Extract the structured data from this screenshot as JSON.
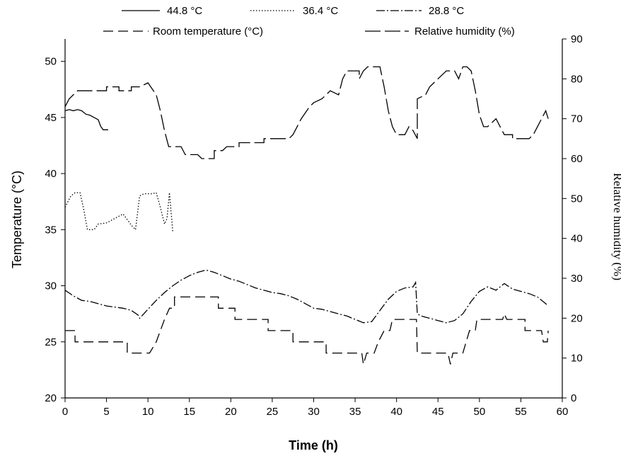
{
  "chart_data": {
    "type": "line",
    "xlabel": "Time (h)",
    "ylabel": "Temperature (°C)",
    "ylabel_right": "Relative humidity (%)",
    "xlim": [
      0,
      60
    ],
    "ylim": [
      20,
      52
    ],
    "ylim_right": [
      0,
      90
    ],
    "x_ticks": [
      0,
      5,
      10,
      15,
      20,
      25,
      30,
      35,
      40,
      45,
      50,
      55,
      60
    ],
    "y_ticks": [
      20,
      25,
      30,
      35,
      40,
      45,
      50
    ],
    "y_ticks_right": [
      0,
      10,
      20,
      30,
      40,
      50,
      60,
      70,
      80,
      90
    ],
    "grid": false,
    "legend_position": "top",
    "series": [
      {
        "name": "44.8 °C",
        "axis": "left",
        "style": "solid",
        "points": [
          [
            0,
            45.6
          ],
          [
            0.5,
            45.7
          ],
          [
            1,
            45.6
          ],
          [
            1.5,
            45.7
          ],
          [
            2,
            45.6
          ],
          [
            2.5,
            45.3
          ],
          [
            3,
            45.2
          ],
          [
            3.5,
            45.0
          ],
          [
            4,
            44.8
          ],
          [
            4.3,
            44.2
          ],
          [
            4.6,
            43.9
          ],
          [
            5.2,
            43.9
          ]
        ]
      },
      {
        "name": "36.4 °C",
        "axis": "left",
        "style": "dotted",
        "points": [
          [
            0,
            37.0
          ],
          [
            0.7,
            38.0
          ],
          [
            1.2,
            38.3
          ],
          [
            1.8,
            38.3
          ],
          [
            2.2,
            37.0
          ],
          [
            2.7,
            35.0
          ],
          [
            3.5,
            35.0
          ],
          [
            4,
            35.5
          ],
          [
            5,
            35.6
          ],
          [
            6,
            36.0
          ],
          [
            7,
            36.4
          ],
          [
            8,
            35.4
          ],
          [
            8.5,
            35.0
          ],
          [
            9,
            38.0
          ],
          [
            9.5,
            38.2
          ],
          [
            10.5,
            38.2
          ],
          [
            11,
            38.3
          ],
          [
            11.5,
            37.0
          ],
          [
            12,
            35.5
          ],
          [
            12.3,
            36.0
          ],
          [
            12.6,
            38.3
          ],
          [
            13,
            34.8
          ]
        ]
      },
      {
        "name": "28.8 °C",
        "axis": "left",
        "style": "dashdot",
        "points": [
          [
            0,
            29.6
          ],
          [
            1,
            29.1
          ],
          [
            2,
            28.7
          ],
          [
            3,
            28.6
          ],
          [
            4,
            28.4
          ],
          [
            5,
            28.2
          ],
          [
            6,
            28.1
          ],
          [
            7,
            28.0
          ],
          [
            8,
            27.8
          ],
          [
            8.8,
            27.4
          ],
          [
            9,
            27.1
          ],
          [
            10,
            27.9
          ],
          [
            11,
            28.7
          ],
          [
            12,
            29.4
          ],
          [
            13,
            30.0
          ],
          [
            14,
            30.5
          ],
          [
            15,
            30.9
          ],
          [
            16,
            31.2
          ],
          [
            17,
            31.4
          ],
          [
            18,
            31.2
          ],
          [
            19,
            30.9
          ],
          [
            20,
            30.6
          ],
          [
            21,
            30.4
          ],
          [
            22,
            30.1
          ],
          [
            23,
            29.8
          ],
          [
            24,
            29.6
          ],
          [
            25,
            29.4
          ],
          [
            26,
            29.3
          ],
          [
            27,
            29.1
          ],
          [
            28,
            28.8
          ],
          [
            29,
            28.4
          ],
          [
            30,
            28.0
          ],
          [
            31,
            27.9
          ],
          [
            32,
            27.7
          ],
          [
            33,
            27.5
          ],
          [
            34,
            27.3
          ],
          [
            35,
            27.0
          ],
          [
            36,
            26.7
          ],
          [
            37,
            26.8
          ],
          [
            38,
            27.8
          ],
          [
            39,
            28.8
          ],
          [
            40,
            29.5
          ],
          [
            41,
            29.8
          ],
          [
            42,
            29.9
          ],
          [
            42.3,
            30.3
          ],
          [
            42.5,
            27.5
          ],
          [
            43,
            27.3
          ],
          [
            44,
            27.1
          ],
          [
            45,
            26.9
          ],
          [
            46,
            26.7
          ],
          [
            47,
            26.9
          ],
          [
            48,
            27.5
          ],
          [
            49,
            28.6
          ],
          [
            50,
            29.5
          ],
          [
            51,
            29.9
          ],
          [
            52,
            29.6
          ],
          [
            53,
            30.2
          ],
          [
            54,
            29.7
          ],
          [
            55,
            29.5
          ],
          [
            56,
            29.3
          ],
          [
            57,
            29.0
          ],
          [
            58,
            28.4
          ],
          [
            58.3,
            28.2
          ]
        ]
      },
      {
        "name": "Room temperature (°C)",
        "axis": "left",
        "style": "dashed",
        "points": [
          [
            0,
            26
          ],
          [
            1.2,
            26
          ],
          [
            1.2,
            25
          ],
          [
            7.5,
            25
          ],
          [
            7.5,
            24
          ],
          [
            10.2,
            24
          ],
          [
            11,
            25
          ],
          [
            12,
            27
          ],
          [
            12.6,
            28
          ],
          [
            13.2,
            28
          ],
          [
            13.2,
            29
          ],
          [
            18.5,
            29
          ],
          [
            18.5,
            28
          ],
          [
            20.5,
            28
          ],
          [
            20.5,
            27
          ],
          [
            24.5,
            27
          ],
          [
            24.5,
            26
          ],
          [
            27.5,
            26
          ],
          [
            27.5,
            25
          ],
          [
            31.5,
            25
          ],
          [
            31.5,
            24
          ],
          [
            35.8,
            24
          ],
          [
            36,
            23
          ],
          [
            36.4,
            24
          ],
          [
            37.3,
            24
          ],
          [
            37.8,
            25
          ],
          [
            38.5,
            26
          ],
          [
            39.2,
            26
          ],
          [
            39.5,
            27
          ],
          [
            42.4,
            27
          ],
          [
            42.5,
            24
          ],
          [
            46.2,
            24
          ],
          [
            46.5,
            23
          ],
          [
            46.8,
            24
          ],
          [
            48,
            24
          ],
          [
            48.4,
            25
          ],
          [
            48.8,
            26
          ],
          [
            49.5,
            26
          ],
          [
            49.7,
            27
          ],
          [
            52.8,
            27
          ],
          [
            53.0,
            27.5
          ],
          [
            53.3,
            27
          ],
          [
            55.5,
            27
          ],
          [
            55.5,
            26
          ],
          [
            57.5,
            26
          ],
          [
            57.7,
            25
          ],
          [
            58.2,
            25
          ],
          [
            58.3,
            26
          ]
        ]
      },
      {
        "name": "Relative humidity (%)",
        "axis": "right",
        "style": "longdash",
        "points": [
          [
            0,
            73
          ],
          [
            0.5,
            75
          ],
          [
            1,
            76
          ],
          [
            1.5,
            77
          ],
          [
            5,
            77
          ],
          [
            5,
            78
          ],
          [
            6.5,
            78
          ],
          [
            6.5,
            77
          ],
          [
            8,
            77
          ],
          [
            8,
            78
          ],
          [
            9,
            78
          ],
          [
            10,
            79
          ],
          [
            11,
            76
          ],
          [
            11.5,
            72
          ],
          [
            12,
            67
          ],
          [
            12.5,
            63
          ],
          [
            14,
            63
          ],
          [
            14.5,
            61
          ],
          [
            16,
            61
          ],
          [
            16.5,
            60
          ],
          [
            18,
            60
          ],
          [
            18,
            62
          ],
          [
            19,
            62
          ],
          [
            19.5,
            63
          ],
          [
            21,
            63
          ],
          [
            21,
            64
          ],
          [
            24,
            64
          ],
          [
            24,
            65
          ],
          [
            27,
            65
          ],
          [
            27.5,
            66
          ],
          [
            28,
            68
          ],
          [
            28.5,
            70
          ],
          [
            29.5,
            73
          ],
          [
            30,
            74
          ],
          [
            31,
            75
          ],
          [
            31.5,
            76
          ],
          [
            32,
            77
          ],
          [
            33,
            76
          ],
          [
            33.5,
            80
          ],
          [
            34,
            82
          ],
          [
            35.5,
            82
          ],
          [
            35.5,
            80
          ],
          [
            36,
            82
          ],
          [
            36.5,
            83
          ],
          [
            38,
            83
          ],
          [
            38.5,
            78
          ],
          [
            39,
            72
          ],
          [
            39.5,
            68
          ],
          [
            40,
            66
          ],
          [
            41,
            66
          ],
          [
            41.5,
            68
          ],
          [
            42,
            67
          ],
          [
            42.5,
            65
          ],
          [
            42.5,
            75
          ],
          [
            43.5,
            76
          ],
          [
            44,
            78
          ],
          [
            45,
            80
          ],
          [
            46,
            82
          ],
          [
            47,
            82
          ],
          [
            47.5,
            80
          ],
          [
            48,
            83
          ],
          [
            48.5,
            83
          ],
          [
            49,
            82
          ],
          [
            49.5,
            77
          ],
          [
            50,
            71
          ],
          [
            50.5,
            68
          ],
          [
            51,
            68
          ],
          [
            52,
            70
          ],
          [
            52.5,
            68
          ],
          [
            53,
            66
          ],
          [
            54,
            66
          ],
          [
            54,
            65
          ],
          [
            56,
            65
          ],
          [
            56.5,
            66
          ],
          [
            57,
            68
          ],
          [
            57.5,
            70
          ],
          [
            58,
            72
          ],
          [
            58.3,
            70
          ]
        ]
      }
    ]
  }
}
